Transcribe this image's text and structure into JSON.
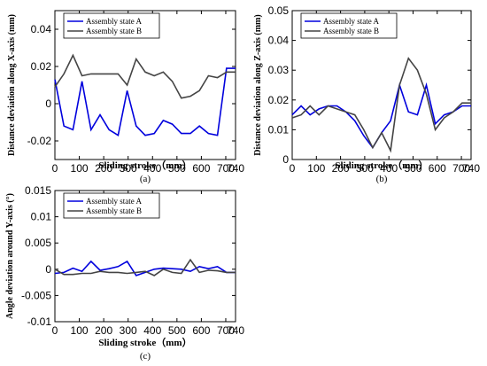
{
  "colors": {
    "series_a": "#0000dd",
    "series_b": "#444444",
    "axis": "#000000"
  },
  "chart_data": [
    {
      "type": "line",
      "caption": "(a)",
      "xlabel": "Sliding stroke（mm）",
      "ylabel": "Distance deviation along X-axis (mm)",
      "xlim": [
        0,
        740
      ],
      "ylim": [
        -0.03,
        0.05
      ],
      "xticks": [
        0,
        100,
        200,
        300,
        400,
        500,
        600,
        700,
        740
      ],
      "yticks": [
        -0.02,
        0,
        0.02,
        0.04
      ],
      "ytick_labels": [
        "-0.02",
        "0",
        "0.02",
        "0.04"
      ],
      "grid": false,
      "legend_position": "top-left",
      "series": [
        {
          "name": "Assembly state A",
          "x": [
            0,
            37,
            74,
            111,
            148,
            185,
            222,
            259,
            296,
            333,
            370,
            407,
            444,
            481,
            518,
            555,
            592,
            629,
            666,
            703,
            740
          ],
          "y": [
            0.013,
            -0.012,
            -0.014,
            0.012,
            -0.014,
            -0.006,
            -0.014,
            -0.017,
            0.007,
            -0.012,
            -0.017,
            -0.016,
            -0.009,
            -0.011,
            -0.016,
            -0.016,
            -0.012,
            -0.016,
            -0.017,
            0.019,
            0.019
          ]
        },
        {
          "name": "Assembly state B",
          "x": [
            0,
            37,
            74,
            111,
            148,
            185,
            222,
            259,
            296,
            333,
            370,
            407,
            444,
            481,
            518,
            555,
            592,
            629,
            666,
            703,
            740
          ],
          "y": [
            0.009,
            0.016,
            0.026,
            0.015,
            0.016,
            0.016,
            0.016,
            0.016,
            0.01,
            0.024,
            0.017,
            0.015,
            0.017,
            0.012,
            0.003,
            0.004,
            0.007,
            0.015,
            0.014,
            0.017,
            0.017
          ]
        }
      ]
    },
    {
      "type": "line",
      "caption": "(b)",
      "xlabel": "Sliding stroke（mm）",
      "ylabel": "Distance deviation along Z-axis (mm)",
      "xlim": [
        0,
        740
      ],
      "ylim": [
        0,
        0.05
      ],
      "xticks": [
        0,
        100,
        200,
        300,
        400,
        500,
        600,
        700,
        740
      ],
      "yticks": [
        0,
        0.01,
        0.02,
        0.03,
        0.04,
        0.05
      ],
      "ytick_labels": [
        "0",
        "0.01",
        "0.02",
        "0.03",
        "0.04",
        "0.05"
      ],
      "grid": false,
      "legend_position": "top-left",
      "series": [
        {
          "name": "Assembly state A",
          "x": [
            0,
            37,
            74,
            111,
            148,
            185,
            222,
            259,
            296,
            333,
            370,
            407,
            444,
            481,
            518,
            555,
            592,
            629,
            666,
            703,
            740
          ],
          "y": [
            0.015,
            0.018,
            0.015,
            0.017,
            0.018,
            0.018,
            0.016,
            0.013,
            0.008,
            0.004,
            0.009,
            0.013,
            0.025,
            0.016,
            0.015,
            0.025,
            0.012,
            0.015,
            0.016,
            0.018,
            0.018
          ]
        },
        {
          "name": "Assembly state B",
          "x": [
            0,
            37,
            74,
            111,
            148,
            185,
            222,
            259,
            296,
            333,
            370,
            407,
            444,
            481,
            518,
            555,
            592,
            629,
            666,
            703,
            740
          ],
          "y": [
            0.014,
            0.015,
            0.018,
            0.015,
            0.018,
            0.017,
            0.016,
            0.015,
            0.01,
            0.004,
            0.009,
            0.003,
            0.025,
            0.034,
            0.03,
            0.022,
            0.01,
            0.014,
            0.016,
            0.019,
            0.019
          ]
        }
      ]
    },
    {
      "type": "line",
      "caption": "(c)",
      "xlabel": "Sliding stroke（mm）",
      "ylabel": "Angle deviation around Y-axis (°)",
      "xlim": [
        0,
        740
      ],
      "ylim": [
        -0.01,
        0.015
      ],
      "xticks": [
        0,
        100,
        200,
        300,
        400,
        500,
        600,
        700,
        740
      ],
      "yticks": [
        -0.01,
        -0.005,
        0,
        0.005,
        0.01,
        0.015
      ],
      "ytick_labels": [
        "-0.01",
        "-0.005",
        "0",
        "0.005",
        "0.01",
        "0.015"
      ],
      "grid": false,
      "legend_position": "top-left",
      "series": [
        {
          "name": "Assembly state A",
          "x": [
            0,
            37,
            74,
            111,
            148,
            185,
            222,
            259,
            296,
            333,
            370,
            407,
            444,
            481,
            518,
            555,
            592,
            629,
            666,
            703,
            740
          ],
          "y": [
            -0.0008,
            -0.0006,
            0.0002,
            -0.0004,
            0.0015,
            -0.0002,
            0.0001,
            0.0005,
            0.0015,
            -0.0012,
            -0.0006,
            0.0,
            0.0002,
            0.0001,
            0.0,
            -0.0004,
            0.0005,
            0.0001,
            0.0005,
            -0.0006,
            -0.0006
          ]
        },
        {
          "name": "Assembly state B",
          "x": [
            0,
            37,
            74,
            111,
            148,
            185,
            222,
            259,
            296,
            333,
            370,
            407,
            444,
            481,
            518,
            555,
            592,
            629,
            666,
            703,
            740
          ],
          "y": [
            0.0,
            -0.001,
            -0.001,
            -0.0008,
            -0.0008,
            -0.0004,
            -0.0006,
            -0.0006,
            -0.0008,
            -0.0006,
            -0.0004,
            -0.0012,
            0.0,
            -0.0006,
            -0.0008,
            0.0018,
            -0.0006,
            -0.0002,
            -0.0003,
            -0.0006,
            -0.0006
          ]
        }
      ]
    }
  ]
}
